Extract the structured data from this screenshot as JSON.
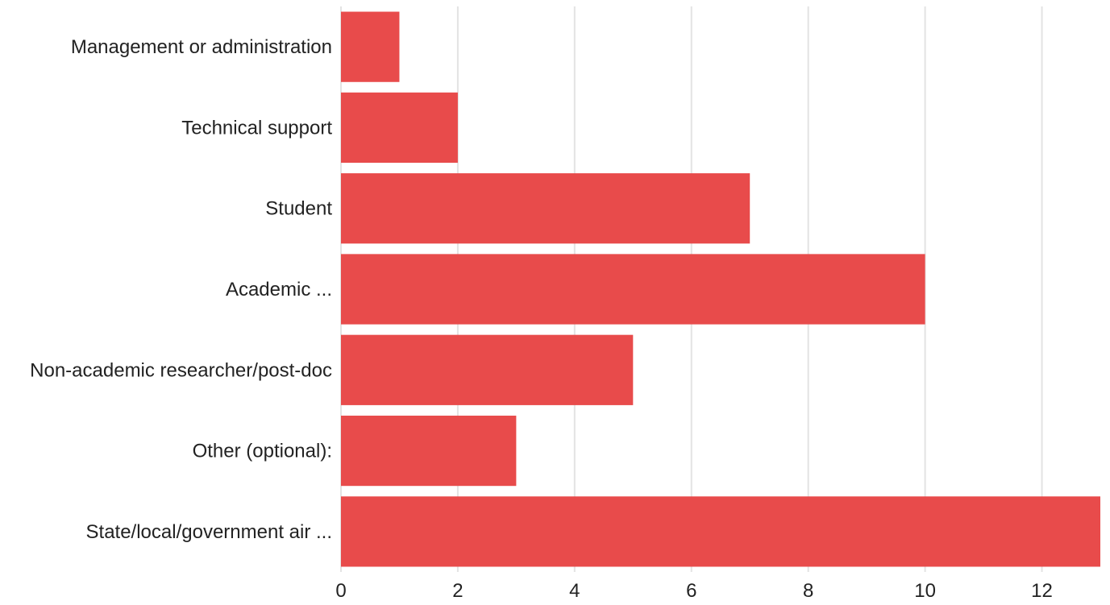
{
  "chart_data": {
    "type": "bar",
    "orientation": "horizontal",
    "categories": [
      "Management or administration",
      "Technical support",
      "Student",
      "Academic ...",
      "Non-academic researcher/post-doc",
      "Other (optional):",
      "State/local/government air ..."
    ],
    "values": [
      1,
      2,
      7,
      10,
      5,
      3,
      13
    ],
    "xticks": [
      0,
      2,
      4,
      6,
      8,
      10,
      12
    ],
    "xlim": [
      0,
      13
    ],
    "title": "",
    "xlabel": "",
    "ylabel": "",
    "grid": "vertical",
    "legend": "none",
    "bar_color": "#e84b4b",
    "grid_color": "#e3e3e3"
  }
}
